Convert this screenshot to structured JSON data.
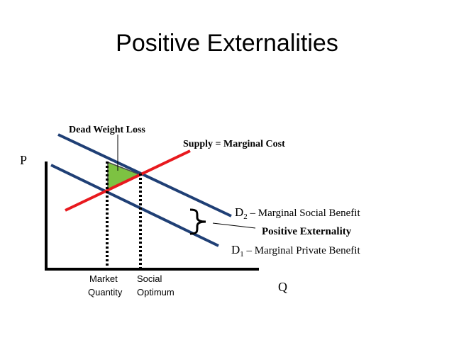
{
  "slide": {
    "title": "Positive Externalities"
  },
  "diagram": {
    "axes": {
      "y_label": "P",
      "x_label": "Q"
    },
    "labels": {
      "dead_weight_loss": "Dead Weight Loss",
      "supply": "Supply = Marginal Cost",
      "positive_externality": "Positive Externality",
      "d2_main": "D",
      "d2_sub": "2",
      "d2_desc": " – Marginal Social Benefit",
      "d1_main": "D",
      "d1_sub": "1",
      "d1_desc": " – Marginal Private Benefit",
      "market_quantity_line1": "Market",
      "market_quantity_line2": "Quantity",
      "social_optimum_line1": "Social",
      "social_optimum_line2": "Optimum"
    },
    "colors": {
      "demand": "#1f3f75",
      "supply": "#e8191e",
      "dwl_fill": "#7dc242",
      "axis": "#000000"
    }
  }
}
